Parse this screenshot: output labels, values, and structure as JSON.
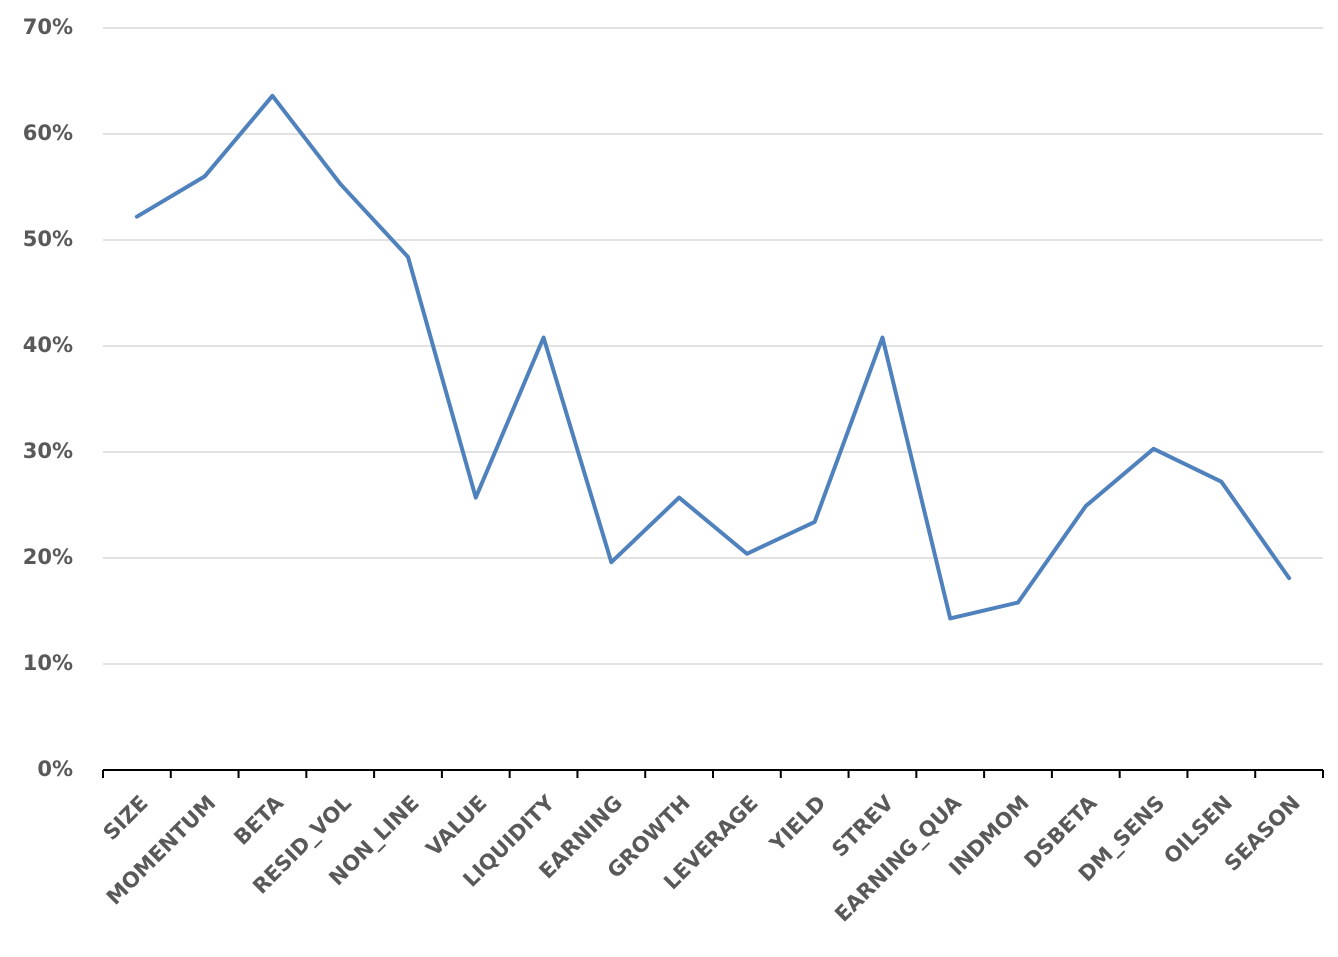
{
  "chart_data": {
    "type": "line",
    "categories": [
      "SIZE",
      "MOMENTUM",
      "BETA",
      "RESID_VOL",
      "NON_LINE",
      "VALUE",
      "LIQUIDITY",
      "EARNING",
      "GROWTH",
      "LEVERAGE",
      "YIELD",
      "STREV",
      "EARNING_QUA",
      "INDMOM",
      "DSBETA",
      "DM_SENS",
      "OILSEN",
      "SEASON"
    ],
    "values": [
      52.2,
      56.0,
      63.6,
      55.3,
      48.4,
      25.7,
      40.8,
      19.6,
      25.7,
      20.4,
      23.4,
      40.8,
      14.3,
      15.8,
      24.9,
      30.3,
      27.2,
      18.1
    ],
    "color": "#4f81bd",
    "ylim": [
      0,
      70
    ],
    "yticks": [
      {
        "value": 0,
        "label": "0%"
      },
      {
        "value": 10,
        "label": "10%"
      },
      {
        "value": 20,
        "label": "20%"
      },
      {
        "value": 30,
        "label": "30%"
      },
      {
        "value": 40,
        "label": "40%"
      },
      {
        "value": 50,
        "label": "50%"
      },
      {
        "value": 60,
        "label": "60%"
      },
      {
        "value": 70,
        "label": "70%"
      }
    ],
    "grid": true
  }
}
